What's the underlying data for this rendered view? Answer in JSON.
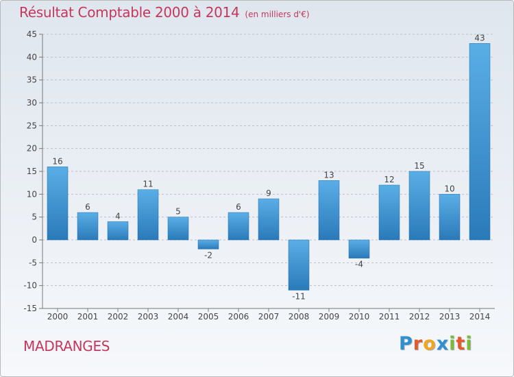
{
  "header": {
    "title": "Résultat Comptable 2000 à 2014",
    "subtitle": "(en milliers d'€)"
  },
  "footer": {
    "place": "MADRANGES"
  },
  "logo": {
    "letters": [
      {
        "char": "P",
        "color": "#2f8fd0"
      },
      {
        "char": "r",
        "color": "#e6592b"
      },
      {
        "char": "o",
        "color": "#f2a51d"
      },
      {
        "char": "x",
        "color": "#2f8fd0"
      },
      {
        "char": "i",
        "color": "#7dba3a"
      },
      {
        "char": "t",
        "color": "#e6592b"
      },
      {
        "char": "i",
        "color": "#7dba3a"
      }
    ]
  },
  "colors": {
    "accent": "#c4375b",
    "bar_light": "#5aaee6",
    "bar_dark": "#2a7ab9"
  },
  "chart_data": {
    "type": "bar",
    "title": "Résultat Comptable 2000 à 2014",
    "subtitle": "(en milliers d'€)",
    "xlabel": "",
    "ylabel": "",
    "categories": [
      "2000",
      "2001",
      "2002",
      "2003",
      "2004",
      "2005",
      "2006",
      "2007",
      "2008",
      "2009",
      "2010",
      "2011",
      "2012",
      "2013",
      "2014"
    ],
    "values": [
      16,
      6,
      4,
      11,
      5,
      -2,
      6,
      9,
      -11,
      13,
      -4,
      12,
      15,
      10,
      43
    ],
    "ylim": [
      -15,
      45
    ],
    "yticks": [
      -15,
      -10,
      -5,
      0,
      5,
      10,
      15,
      20,
      25,
      30,
      35,
      40,
      45
    ],
    "grid": "horizontal dashed",
    "data_labels": true
  }
}
